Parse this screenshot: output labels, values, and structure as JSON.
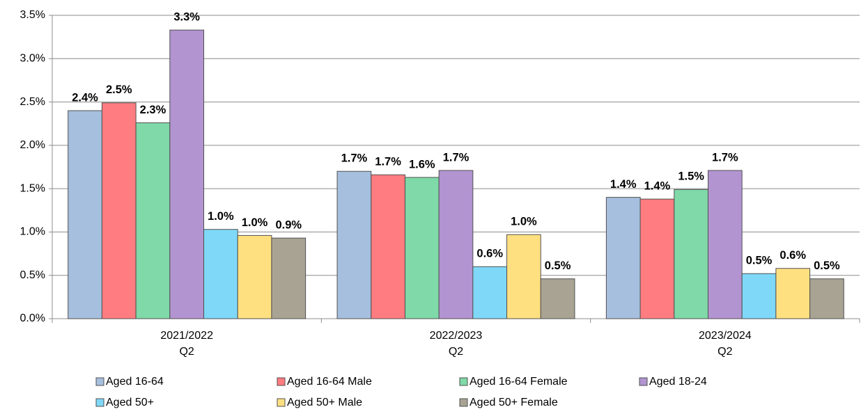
{
  "chart_data": {
    "type": "bar",
    "categories": [
      [
        "2021/2022",
        "Q2"
      ],
      [
        "2022/2023",
        "Q2"
      ],
      [
        "2023/2024",
        "Q2"
      ]
    ],
    "series": [
      {
        "name": "Aged 16-64",
        "color": "#a7bfde",
        "values": [
          2.4,
          1.7,
          1.4
        ],
        "value_labels": [
          "2.4%",
          "1.7%",
          "1.4%"
        ]
      },
      {
        "name": "Aged 16-64 Male",
        "color": "#ff7c80",
        "values": [
          2.49,
          1.66,
          1.38
        ],
        "value_labels": [
          "2.5%",
          "1.7%",
          "1.4%"
        ]
      },
      {
        "name": "Aged 16-64 Female",
        "color": "#7fd9a8",
        "values": [
          2.26,
          1.63,
          1.49
        ],
        "value_labels": [
          "2.3%",
          "1.6%",
          "1.5%"
        ]
      },
      {
        "name": "Aged 18-24",
        "color": "#b294d0",
        "values": [
          3.33,
          1.71,
          1.71
        ],
        "value_labels": [
          "3.3%",
          "1.7%",
          "1.7%"
        ]
      },
      {
        "name": "Aged 50+",
        "color": "#7fd8f8",
        "values": [
          1.03,
          0.6,
          0.52
        ],
        "value_labels": [
          "1.0%",
          "0.6%",
          "0.5%"
        ]
      },
      {
        "name": "Aged 50+ Male",
        "color": "#ffe080",
        "values": [
          0.96,
          0.97,
          0.58
        ],
        "value_labels": [
          "1.0%",
          "1.0%",
          "0.6%"
        ]
      },
      {
        "name": "Aged 50+ Female",
        "color": "#a8a393",
        "values": [
          0.93,
          0.46,
          0.46
        ],
        "value_labels": [
          "0.9%",
          "0.5%",
          "0.5%"
        ]
      }
    ],
    "ylim": [
      0,
      3.5
    ],
    "yticks": [
      {
        "value": 0,
        "label": "0.0%"
      },
      {
        "value": 0.5,
        "label": "0.5%"
      },
      {
        "value": 1,
        "label": "1.0%"
      },
      {
        "value": 1.5,
        "label": "1.5%"
      },
      {
        "value": 2,
        "label": "2.0%"
      },
      {
        "value": 2.5,
        "label": "2.5%"
      },
      {
        "value": 3,
        "label": "3.0%"
      },
      {
        "value": 3.5,
        "label": "3.5%"
      }
    ],
    "grid": true,
    "legend": "bottom"
  }
}
